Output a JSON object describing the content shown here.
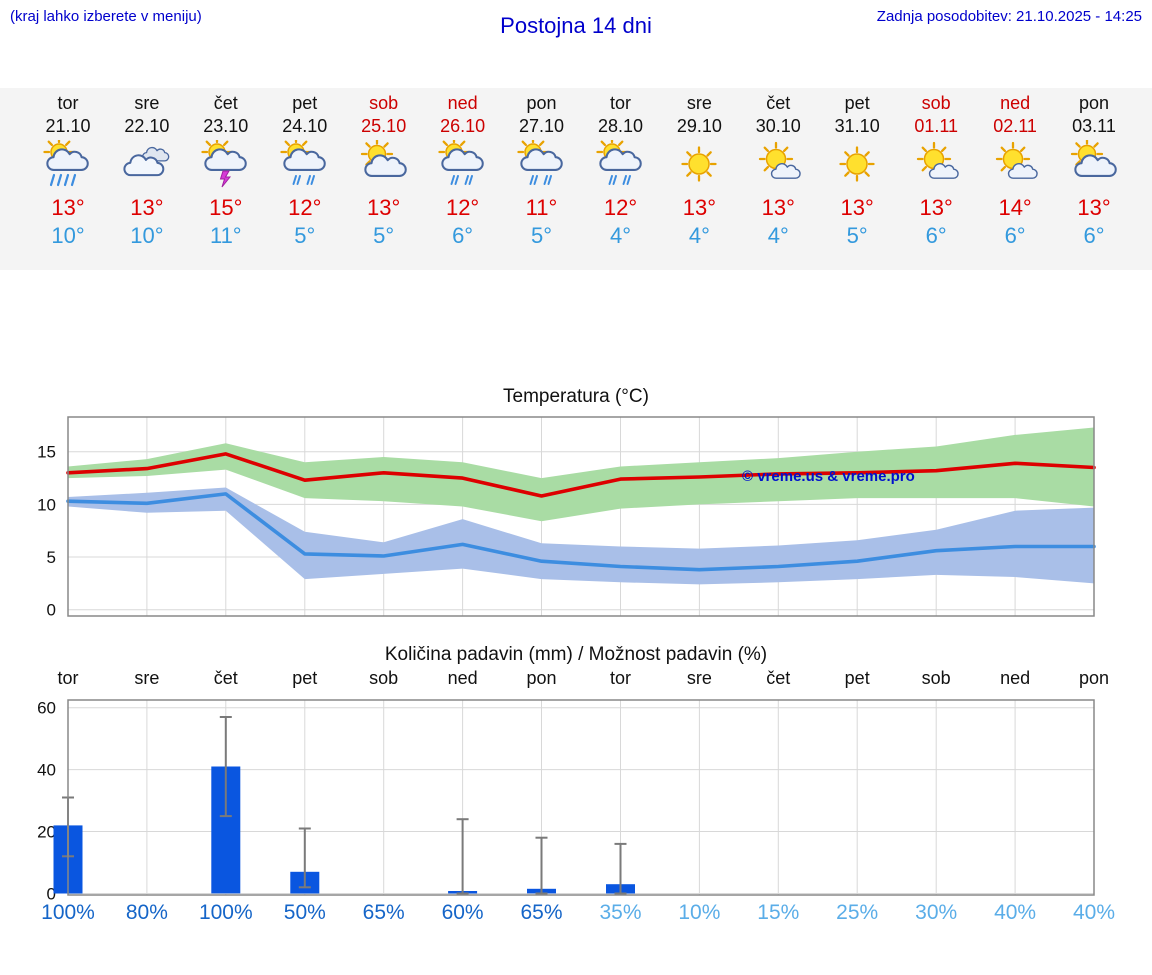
{
  "header": {
    "left_note": "(kraj lahko izberete v meniju)",
    "title": "Postojna 14 dni",
    "updated": "Zadnja posodobitev: 21.10.2025 - 14:25"
  },
  "colors": {
    "header_blue": "#0000cc",
    "weekend_red": "#cc0000",
    "high_temp_red": "#dd0000",
    "low_temp_blue": "#3399dd",
    "strip_bg": "#f4f4f4",
    "prob_high": "#1565c8",
    "prob_low": "#5aade8",
    "bar_blue": "#0a56e0",
    "max_line": "#dd0000",
    "min_line": "#3d8de0",
    "max_band": "#a9dca4",
    "min_band": "#a9bfe8"
  },
  "watermark": "© vreme.us & vreme.pro",
  "forecast": {
    "days": [
      {
        "day": "tor",
        "date": "21.10",
        "weekend": false,
        "icon": "rain-sun",
        "high": "13°",
        "low": "10°"
      },
      {
        "day": "sre",
        "date": "22.10",
        "weekend": false,
        "icon": "cloudy",
        "high": "13°",
        "low": "10°"
      },
      {
        "day": "čet",
        "date": "23.10",
        "weekend": false,
        "icon": "thunder-sun",
        "high": "15°",
        "low": "11°"
      },
      {
        "day": "pet",
        "date": "24.10",
        "weekend": false,
        "icon": "shower-sun",
        "high": "12°",
        "low": "5°"
      },
      {
        "day": "sob",
        "date": "25.10",
        "weekend": true,
        "icon": "cloud-sun",
        "high": "13°",
        "low": "5°"
      },
      {
        "day": "ned",
        "date": "26.10",
        "weekend": true,
        "icon": "shower-sun",
        "high": "12°",
        "low": "6°"
      },
      {
        "day": "pon",
        "date": "27.10",
        "weekend": false,
        "icon": "shower-sun",
        "high": "11°",
        "low": "5°"
      },
      {
        "day": "tor",
        "date": "28.10",
        "weekend": false,
        "icon": "shower-sun",
        "high": "12°",
        "low": "4°"
      },
      {
        "day": "sre",
        "date": "29.10",
        "weekend": false,
        "icon": "sun",
        "high": "13°",
        "low": "4°"
      },
      {
        "day": "čet",
        "date": "30.10",
        "weekend": false,
        "icon": "sun-small-cloud",
        "high": "13°",
        "low": "4°"
      },
      {
        "day": "pet",
        "date": "31.10",
        "weekend": false,
        "icon": "sun",
        "high": "13°",
        "low": "5°"
      },
      {
        "day": "sob",
        "date": "01.11",
        "weekend": true,
        "icon": "sun-small-cloud",
        "high": "13°",
        "low": "6°"
      },
      {
        "day": "ned",
        "date": "02.11",
        "weekend": true,
        "icon": "sun-small-cloud",
        "high": "14°",
        "low": "6°"
      },
      {
        "day": "pon",
        "date": "03.11",
        "weekend": false,
        "icon": "cloud-sun",
        "high": "13°",
        "low": "6°"
      }
    ]
  },
  "chart_data": [
    {
      "type": "line",
      "title": "Temperatura (°C)",
      "categories": [
        "tor",
        "sre",
        "čet",
        "pet",
        "sob",
        "ned",
        "pon",
        "tor",
        "sre",
        "čet",
        "pet",
        "sob",
        "ned",
        "pon"
      ],
      "yticks": [
        0,
        5,
        10,
        15
      ],
      "ylim": [
        -0.6,
        18.3
      ],
      "grid": true,
      "series": [
        {
          "name": "max-temp",
          "color": "#dd0000",
          "band_color": "#a9dca4",
          "values": [
            13.0,
            13.4,
            14.8,
            12.3,
            13.0,
            12.5,
            10.8,
            12.4,
            12.6,
            12.9,
            13.0,
            13.2,
            13.9,
            13.5
          ],
          "band_upper": [
            13.6,
            14.3,
            15.8,
            14.0,
            14.5,
            14.0,
            12.5,
            13.6,
            14.0,
            14.4,
            15.0,
            15.5,
            16.6,
            17.3
          ],
          "band_lower": [
            12.5,
            12.7,
            13.3,
            10.6,
            10.3,
            9.8,
            8.4,
            9.6,
            10.0,
            10.3,
            10.6,
            10.6,
            10.6,
            9.8
          ]
        },
        {
          "name": "min-temp",
          "color": "#3d8de0",
          "band_color": "#a9bfe8",
          "values": [
            10.3,
            10.1,
            11.0,
            5.3,
            5.1,
            6.2,
            4.6,
            4.1,
            3.8,
            4.1,
            4.6,
            5.6,
            6.0,
            6.0
          ],
          "band_upper": [
            10.7,
            11.1,
            11.6,
            7.4,
            6.4,
            8.6,
            6.3,
            6.0,
            5.8,
            6.1,
            6.6,
            7.6,
            9.4,
            9.7
          ],
          "band_lower": [
            9.8,
            9.2,
            9.4,
            2.9,
            3.4,
            3.9,
            2.9,
            2.6,
            2.4,
            2.6,
            2.9,
            3.3,
            3.1,
            2.5
          ]
        }
      ]
    },
    {
      "type": "bar",
      "title": "Količina padavin (mm) / Možnost padavin (%)",
      "categories": [
        "tor",
        "sre",
        "čet",
        "pet",
        "sob",
        "ned",
        "pon",
        "tor",
        "sre",
        "čet",
        "pet",
        "sob",
        "ned",
        "pon"
      ],
      "yticks": [
        0,
        20,
        40,
        60
      ],
      "ylim": [
        -0.5,
        62.5
      ],
      "grid": true,
      "bar_color": "#0a56e0",
      "values": [
        22,
        0,
        41,
        7,
        0,
        0.8,
        1.5,
        3,
        0,
        0,
        0,
        0,
        0,
        0
      ],
      "error_low": [
        12,
        null,
        25,
        2,
        null,
        0,
        0,
        0,
        null,
        null,
        null,
        null,
        null,
        null
      ],
      "error_high": [
        31,
        null,
        57,
        21,
        null,
        24,
        18,
        16,
        null,
        null,
        null,
        null,
        null,
        null
      ],
      "probabilities": [
        100,
        80,
        100,
        50,
        65,
        60,
        65,
        35,
        10,
        15,
        25,
        30,
        40,
        40
      ],
      "prob_threshold_dark": 50
    }
  ]
}
